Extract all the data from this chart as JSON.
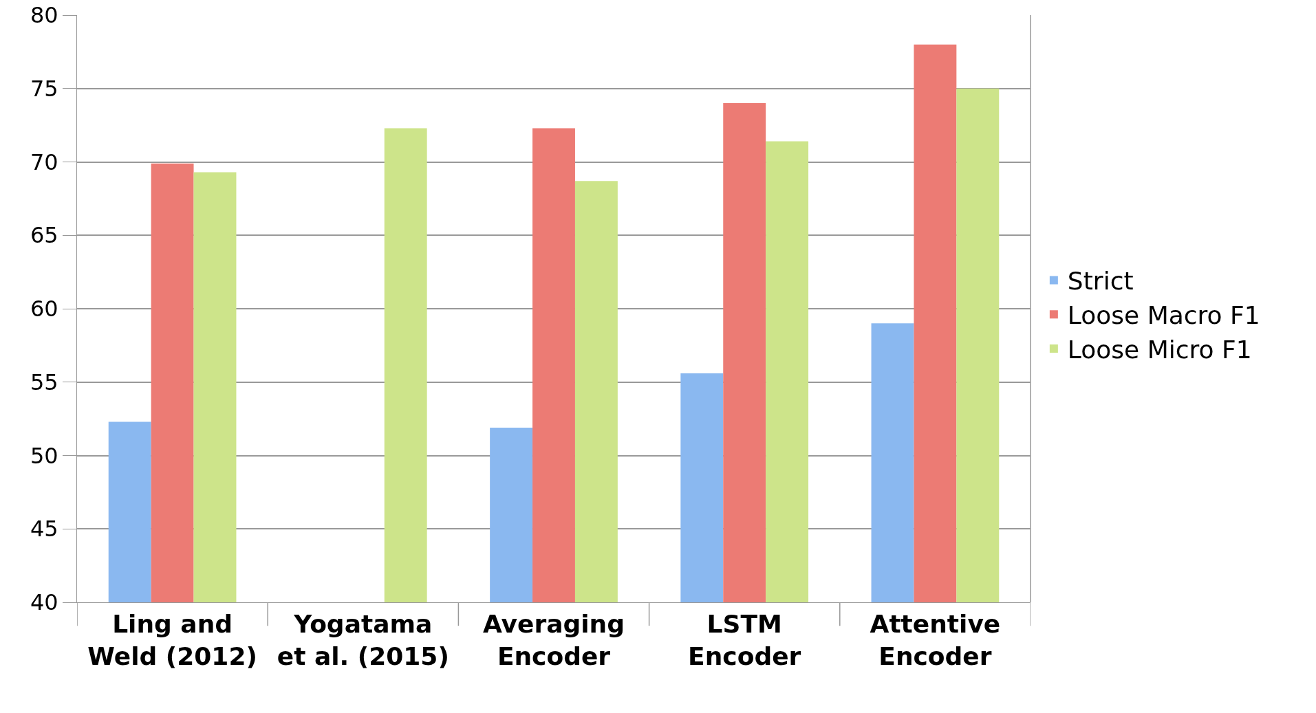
{
  "chart_data": {
    "type": "bar",
    "categories": [
      "Ling and\nWeld (2012)",
      "Yogatama\net al. (2015)",
      "Averaging\nEncoder",
      "LSTM\nEncoder",
      "Attentive\nEncoder"
    ],
    "series": [
      {
        "name": "Strict",
        "color": "#8ab8f0",
        "values": [
          52.3,
          null,
          51.9,
          55.6,
          59.0
        ]
      },
      {
        "name": "Loose Macro F1",
        "color": "#ec7b74",
        "values": [
          69.9,
          null,
          72.3,
          74.0,
          78.0
        ]
      },
      {
        "name": "Loose Micro F1",
        "color": "#cde48a",
        "values": [
          69.3,
          72.3,
          68.7,
          71.4,
          75.0
        ]
      }
    ],
    "ylim": [
      40,
      80
    ],
    "yticks": [
      40,
      45,
      50,
      55,
      60,
      65,
      70,
      75,
      80
    ],
    "grid": "y",
    "legend": "right"
  }
}
